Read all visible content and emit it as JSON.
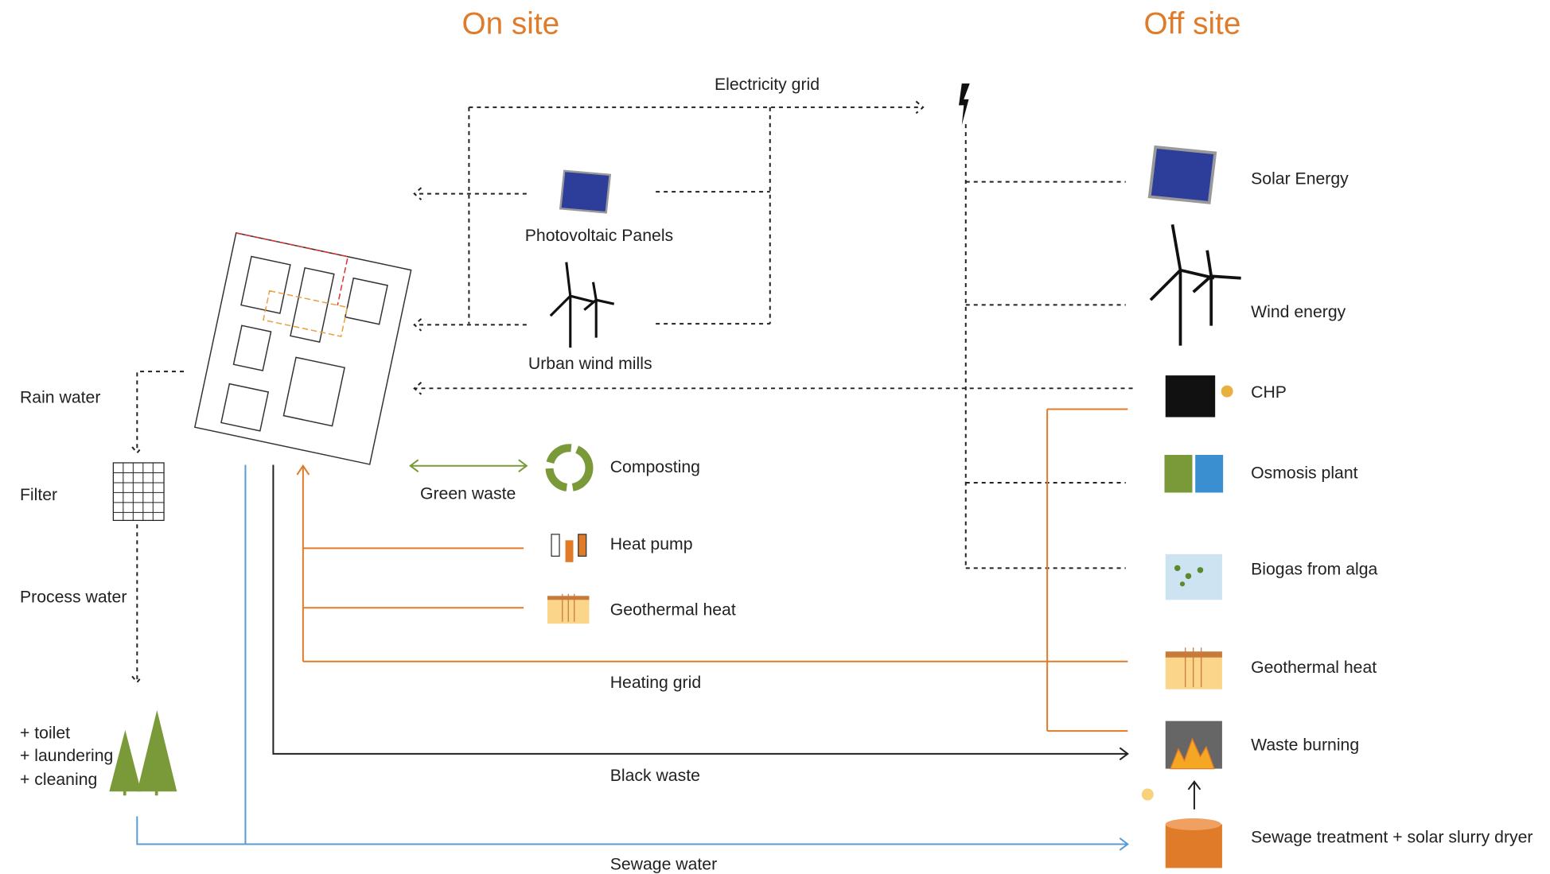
{
  "headers": {
    "on_site": "On site",
    "off_site": "Off site"
  },
  "flows": {
    "electricity_grid": "Electricity grid",
    "green_waste": "Green waste",
    "heating_grid": "Heating grid",
    "black_waste": "Black waste",
    "sewage_water": "Sewage water"
  },
  "water": {
    "rain_water": "Rain water",
    "filter": "Filter",
    "process_water": "Process water",
    "uses": [
      "+ toilet",
      "+ laundering",
      "+ cleaning"
    ]
  },
  "on_site": [
    "Photovoltaic Panels",
    "Urban wind mills",
    "Composting",
    "Heat pump",
    "Geothermal heat"
  ],
  "off_site": [
    "Solar Energy",
    "Wind energy",
    "CHP",
    "Osmosis plant",
    "Biogas from alga",
    "Geothermal heat",
    "Waste burning",
    "Sewage treatment + solar slurry dryer"
  ]
}
